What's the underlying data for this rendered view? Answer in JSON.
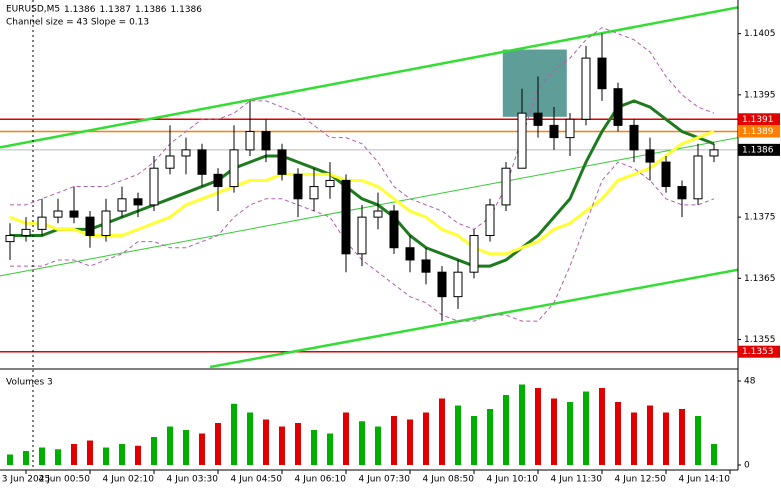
{
  "chart_data": {
    "type": "candlestick",
    "title": "EURUSD,M5",
    "quote": [
      1.1386,
      1.1387,
      1.1386,
      1.1386
    ],
    "subtitle": "Channel size = 43 Slope = 0.13",
    "open": [
      1.1371,
      1.1372,
      1.1373,
      1.1375,
      1.1376,
      1.1375,
      1.1372,
      1.1376,
      1.1378,
      1.1377,
      1.1383,
      1.1385,
      1.1386,
      1.1382,
      1.138,
      1.1386,
      1.1389,
      1.1386,
      1.1382,
      1.1378,
      1.138,
      1.1381,
      1.1369,
      1.1375,
      1.1376,
      1.137,
      1.1368,
      1.1366,
      1.1362,
      1.1366,
      1.1372,
      1.1377,
      1.1383,
      1.1392,
      1.139,
      1.1388,
      1.1391,
      1.1401,
      1.1396,
      1.139,
      1.1386,
      1.1384,
      1.138,
      1.1378,
      1.1385
    ],
    "high": [
      1.1374,
      1.1375,
      1.1378,
      1.1378,
      1.138,
      1.1376,
      1.1378,
      1.138,
      1.1379,
      1.1385,
      1.139,
      1.1388,
      1.1387,
      1.1383,
      1.139,
      1.1394,
      1.1391,
      1.1387,
      1.1383,
      1.1383,
      1.1384,
      1.1382,
      1.1377,
      1.1379,
      1.1377,
      1.1372,
      1.137,
      1.1367,
      1.1368,
      1.1373,
      1.1378,
      1.1384,
      1.1396,
      1.1398,
      1.1393,
      1.1392,
      1.1403,
      1.1405,
      1.1397,
      1.1391,
      1.1388,
      1.1385,
      1.1381,
      1.1387,
      1.1387
    ],
    "low": [
      1.1368,
      1.1371,
      1.1372,
      1.1374,
      1.1374,
      1.137,
      1.1371,
      1.1375,
      1.1375,
      1.1376,
      1.1382,
      1.1382,
      1.138,
      1.1376,
      1.1379,
      1.1385,
      1.1384,
      1.1381,
      1.1375,
      1.1376,
      1.1378,
      1.1366,
      1.1367,
      1.1373,
      1.1369,
      1.1366,
      1.1364,
      1.1358,
      1.136,
      1.1365,
      1.1371,
      1.1376,
      1.1383,
      1.1388,
      1.1386,
      1.1385,
      1.139,
      1.1394,
      1.1389,
      1.1384,
      1.1381,
      1.1379,
      1.1375,
      1.1377,
      1.1384
    ],
    "close": [
      1.1372,
      1.1373,
      1.1375,
      1.1376,
      1.1375,
      1.1372,
      1.1376,
      1.1378,
      1.1377,
      1.1383,
      1.1385,
      1.1386,
      1.1382,
      1.138,
      1.1386,
      1.1389,
      1.1386,
      1.1382,
      1.1378,
      1.138,
      1.1381,
      1.1369,
      1.1375,
      1.1376,
      1.137,
      1.1368,
      1.1366,
      1.1362,
      1.1366,
      1.1372,
      1.1377,
      1.1383,
      1.1392,
      1.139,
      1.1388,
      1.1391,
      1.1401,
      1.1396,
      1.139,
      1.1386,
      1.1384,
      1.138,
      1.1378,
      1.1385,
      1.1386
    ],
    "up_color": "#ffffff",
    "down_color": "#000000",
    "series": [
      {
        "color": "#1e7a1e",
        "width": 3,
        "dashed": false,
        "values": [
          1.1372,
          1.1372,
          1.1372,
          1.1373,
          1.1373,
          1.1373,
          1.1374,
          1.1375,
          1.1376,
          1.1377,
          1.1378,
          1.1379,
          1.138,
          1.1381,
          1.1383,
          1.1384,
          1.1385,
          1.1385,
          1.1384,
          1.1383,
          1.1382,
          1.138,
          1.1378,
          1.1377,
          1.1375,
          1.1372,
          1.137,
          1.1369,
          1.1368,
          1.1367,
          1.1367,
          1.1368,
          1.137,
          1.1372,
          1.1375,
          1.1378,
          1.1384,
          1.1389,
          1.1393,
          1.1394,
          1.1393,
          1.1391,
          1.1389,
          1.1388,
          1.1387
        ]
      },
      {
        "color": "#ffff33",
        "width": 3,
        "dashed": false,
        "values": [
          1.1375,
          1.1374,
          1.1374,
          1.1373,
          1.1373,
          1.1372,
          1.1372,
          1.1372,
          1.1373,
          1.1374,
          1.1375,
          1.1377,
          1.1378,
          1.1379,
          1.138,
          1.1381,
          1.1381,
          1.1382,
          1.1382,
          1.1382,
          1.1382,
          1.1381,
          1.1381,
          1.138,
          1.1378,
          1.1376,
          1.1375,
          1.1373,
          1.1372,
          1.137,
          1.1369,
          1.1369,
          1.137,
          1.1371,
          1.1373,
          1.1374,
          1.1376,
          1.1378,
          1.1381,
          1.1382,
          1.1383,
          1.1385,
          1.1387,
          1.1388,
          1.1389
        ]
      },
      {
        "color": "#b060b0",
        "width": 1,
        "dashed": true,
        "values": [
          1.1377,
          1.1377,
          1.1378,
          1.1379,
          1.138,
          1.138,
          1.138,
          1.1381,
          1.1382,
          1.1384,
          1.1387,
          1.1389,
          1.1391,
          1.1391,
          1.1392,
          1.1394,
          1.1394,
          1.1393,
          1.1392,
          1.139,
          1.1388,
          1.1388,
          1.1387,
          1.1384,
          1.138,
          1.1378,
          1.1377,
          1.1376,
          1.1374,
          1.1373,
          1.1375,
          1.138,
          1.1388,
          1.1396,
          1.1399,
          1.1401,
          1.1404,
          1.1406,
          1.1405,
          1.1404,
          1.1402,
          1.1398,
          1.1395,
          1.1393,
          1.1392
        ]
      },
      {
        "color": "#b060b0",
        "width": 1,
        "dashed": true,
        "values": [
          1.1367,
          1.1367,
          1.1367,
          1.1368,
          1.1368,
          1.1367,
          1.1368,
          1.1369,
          1.1371,
          1.1371,
          1.137,
          1.137,
          1.1371,
          1.1372,
          1.1375,
          1.1377,
          1.1378,
          1.1378,
          1.1377,
          1.1376,
          1.1375,
          1.1371,
          1.1368,
          1.1366,
          1.1364,
          1.1362,
          1.1361,
          1.1359,
          1.1358,
          1.1358,
          1.1359,
          1.1359,
          1.1358,
          1.1358,
          1.1361,
          1.1367,
          1.1374,
          1.1381,
          1.1384,
          1.1383,
          1.1381,
          1.1378,
          1.1377,
          1.1377,
          1.1378
        ]
      }
    ],
    "trend_lines": [
      {
        "x": [
          -0.625,
          45.5
        ],
        "values": [
          1.13864,
          1.14093
        ],
        "color": "#33dd33",
        "width": 2.5
      },
      {
        "x": [
          -0.625,
          45.5
        ],
        "values": [
          1.13654,
          1.1388
        ],
        "color": "#33cc33",
        "width": 1
      },
      {
        "x": [
          12.5,
          45.5
        ],
        "values": [
          1.13505,
          1.13664
        ],
        "color": "#33dd33",
        "width": 2.5
      }
    ],
    "highlight_box": {
      "x": [
        30.8,
        34.8
      ],
      "y": [
        1.14024,
        1.13914
      ],
      "color": "#5f9e98"
    },
    "levels": [
      {
        "value": 1.1391,
        "color": "#e00000"
      },
      {
        "value": 1.1389,
        "color": "#ff8000"
      },
      {
        "value": 1.1386,
        "color": "#000000"
      },
      {
        "value": 1.1353,
        "color": "#e00000"
      }
    ],
    "ylim": [
      1.13505,
      1.14105
    ],
    "yticks": [
      1.1405,
      1.1395,
      1.1375,
      1.1365,
      1.1355
    ],
    "xlim": [
      -0.625,
      45.5
    ],
    "xticks": [
      {
        "value": 1,
        "label": "3 Jun 2025"
      },
      {
        "value": 5,
        "label": "4 Jun 00:50"
      },
      {
        "value": 9,
        "label": "4 Jun 02:10"
      },
      {
        "value": 13,
        "label": "4 Jun 03:30"
      },
      {
        "value": 17,
        "label": "4 Jun 04:50"
      },
      {
        "value": 21,
        "label": "4 Jun 06:10"
      },
      {
        "value": 25,
        "label": "4 Jun 07:30"
      },
      {
        "value": 29,
        "label": "4 Jun 08:50"
      },
      {
        "value": 33,
        "label": "4 Jun 10:10"
      },
      {
        "value": 37,
        "label": "4 Jun 11:30"
      },
      {
        "value": 41,
        "label": "4 Jun 12:50"
      },
      {
        "value": 45,
        "label": "4 Jun 14:10"
      }
    ],
    "volumes": {
      "label": "Volumes 3",
      "up_color": "#00b000",
      "down_color": "#e00000",
      "values": [
        6,
        8,
        10,
        9,
        12,
        14,
        10,
        12,
        11,
        16,
        22,
        20,
        18,
        24,
        35,
        30,
        26,
        22,
        24,
        20,
        18,
        30,
        25,
        22,
        28,
        26,
        30,
        38,
        34,
        28,
        32,
        40,
        46,
        44,
        38,
        36,
        42,
        44,
        36,
        30,
        34,
        30,
        32,
        28,
        12
      ],
      "ylim": [
        0,
        48
      ],
      "yticks": [
        48,
        0
      ]
    }
  }
}
